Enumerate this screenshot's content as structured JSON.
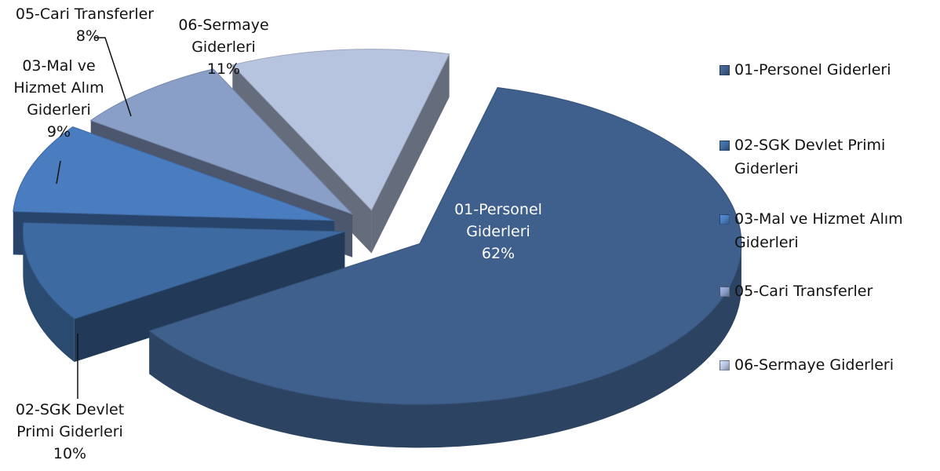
{
  "chart_data": {
    "type": "pie",
    "title": "",
    "slices": [
      {
        "name": "01-Personel Giderleri",
        "label_lines": [
          "01-Personel",
          "Giderleri"
        ],
        "percent_label": "62%",
        "value": 62,
        "color": "#3F5F8C"
      },
      {
        "name": "02-SGK Devlet Primi Giderleri",
        "label_lines": [
          "02-SGK Devlet",
          "Primi Giderleri"
        ],
        "percent_label": "10%",
        "value": 10,
        "color": "#3D6AA0"
      },
      {
        "name": "03-Mal ve Hizmet Alım Giderleri",
        "label_lines": [
          "03-Mal ve",
          "Hizmet Alım",
          "Giderleri"
        ],
        "percent_label": "9%",
        "value": 9,
        "color": "#4A7CC0"
      },
      {
        "name": "05-Cari Transferler",
        "label_lines": [
          "05-Cari Transferler"
        ],
        "percent_label": "8%",
        "value": 8,
        "color": "#8A9FC8"
      },
      {
        "name": "06-Sermaye Giderleri",
        "label_lines": [
          "06-Sermaye",
          "Giderleri"
        ],
        "percent_label": "11%",
        "value": 11,
        "color": "#B7C4DF"
      }
    ],
    "legend": {
      "position": "right",
      "items": [
        "01-Personel Giderleri",
        "02-SGK Devlet Primi Giderleri",
        "03-Mal ve Hizmet Alım Giderleri",
        "05-Cari Transferler",
        "06-Sermaye Giderleri"
      ]
    },
    "style": "3d-exploded"
  }
}
